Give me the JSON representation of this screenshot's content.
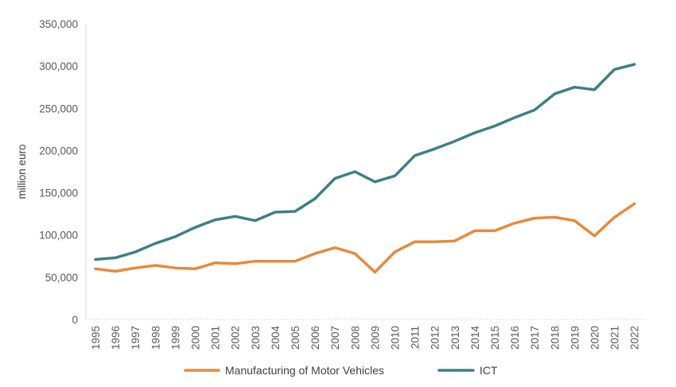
{
  "chart_data": {
    "type": "line",
    "title": "",
    "xlabel": "",
    "ylabel": "million euro",
    "ylim": [
      0,
      350000
    ],
    "yticks": [
      0,
      50000,
      100000,
      150000,
      200000,
      250000,
      300000,
      350000
    ],
    "ytick_labels": [
      "0",
      "50,000",
      "100,000",
      "150,000",
      "200,000",
      "250,000",
      "300,000",
      "350,000"
    ],
    "grid": false,
    "legend_position": "bottom",
    "x": [
      "1995",
      "1996",
      "1997",
      "1998",
      "1999",
      "2000",
      "2001",
      "2002",
      "2003",
      "2004",
      "2005",
      "2006",
      "2007",
      "2008",
      "2009",
      "2010",
      "2011",
      "2012",
      "2013",
      "2014",
      "2015",
      "2016",
      "2017",
      "2018",
      "2019",
      "2020",
      "2021",
      "2022"
    ],
    "series": [
      {
        "name": "Manufacturing of Motor Vehicles",
        "color": "#E8893A",
        "values": [
          60000,
          57000,
          61000,
          64000,
          61000,
          60000,
          67000,
          66000,
          69000,
          69000,
          69000,
          78000,
          85000,
          78000,
          56000,
          80000,
          92000,
          92000,
          93000,
          105000,
          105000,
          114000,
          120000,
          121000,
          117000,
          99000,
          121000,
          137000
        ]
      },
      {
        "name": "ICT",
        "color": "#3E7F86",
        "values": [
          71000,
          73000,
          80000,
          90000,
          98000,
          109000,
          118000,
          122000,
          117000,
          127000,
          128000,
          143000,
          167000,
          175000,
          163000,
          170000,
          194000,
          202000,
          211000,
          221000,
          229000,
          239000,
          248000,
          267000,
          275000,
          272000,
          296000,
          302000
        ]
      }
    ]
  }
}
